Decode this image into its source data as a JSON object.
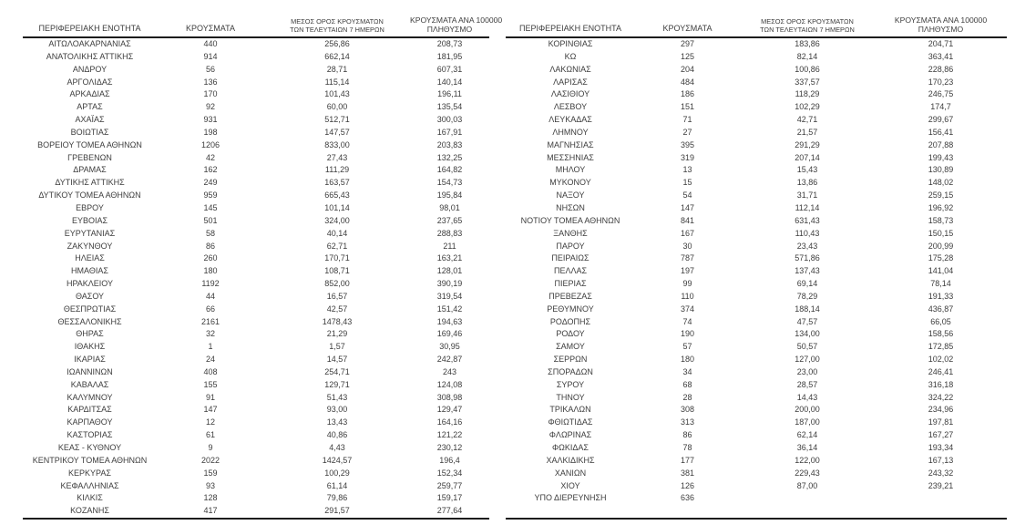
{
  "page": {
    "background_color": "#ffffff",
    "text_color": "#3d3d3d",
    "rule_color": "#1c1c1c"
  },
  "columns": {
    "region": "ΠΕΡΙΦΕΡΕΙΑΚΗ ΕΝΟΤΗΤΑ",
    "cases": "ΚΡΟΥΣΜΑΤΑ",
    "avg7_line1": "ΜΕΣΟΣ ΟΡΟΣ ΚΡΟΥΣΜΑΤΩΝ",
    "avg7_line2": "ΤΩΝ ΤΕΛΕΥΤΑΙΩΝ 7 ΗΜΕΡΩΝ",
    "per100k_line1": "ΚΡΟΥΣΜΑΤΑ ΑΝΑ 100000",
    "per100k_line2": "ΠΛΗΘΥΣΜΟ"
  },
  "left_table": {
    "rows": [
      [
        "ΑΙΤΩΛΟΑΚΑΡΝΑΝΙΑΣ",
        "440",
        "256,86",
        "208,73"
      ],
      [
        "ΑΝΑΤΟΛΙΚΗΣ ΑΤΤΙΚΗΣ",
        "914",
        "662,14",
        "181,95"
      ],
      [
        "ΑΝΔΡΟΥ",
        "56",
        "28,71",
        "607,31"
      ],
      [
        "ΑΡΓΟΛΙΔΑΣ",
        "136",
        "115,14",
        "140,14"
      ],
      [
        "ΑΡΚΑΔΙΑΣ",
        "170",
        "101,43",
        "196,11"
      ],
      [
        "ΑΡΤΑΣ",
        "92",
        "60,00",
        "135,54"
      ],
      [
        "ΑΧΑΪΑΣ",
        "931",
        "512,71",
        "300,03"
      ],
      [
        "ΒΟΙΩΤΙΑΣ",
        "198",
        "147,57",
        "167,91"
      ],
      [
        "ΒΟΡΕΙΟΥ ΤΟΜΕΑ ΑΘΗΝΩΝ",
        "1206",
        "833,00",
        "203,83"
      ],
      [
        "ΓΡΕΒΕΝΩΝ",
        "42",
        "27,43",
        "132,25"
      ],
      [
        "ΔΡΑΜΑΣ",
        "162",
        "111,29",
        "164,82"
      ],
      [
        "ΔΥΤΙΚΗΣ ΑΤΤΙΚΗΣ",
        "249",
        "163,57",
        "154,73"
      ],
      [
        "ΔΥΤΙΚΟΥ ΤΟΜΕΑ ΑΘΗΝΩΝ",
        "959",
        "665,43",
        "195,84"
      ],
      [
        "ΕΒΡΟΥ",
        "145",
        "101,14",
        "98,01"
      ],
      [
        "ΕΥΒΟΙΑΣ",
        "501",
        "324,00",
        "237,65"
      ],
      [
        "ΕΥΡΥΤΑΝΙΑΣ",
        "58",
        "40,14",
        "288,83"
      ],
      [
        "ΖΑΚΥΝΘΟΥ",
        "86",
        "62,71",
        "211"
      ],
      [
        "ΗΛΕΙΑΣ",
        "260",
        "170,71",
        "163,21"
      ],
      [
        "ΗΜΑΘΙΑΣ",
        "180",
        "108,71",
        "128,01"
      ],
      [
        "ΗΡΑΚΛΕΙΟΥ",
        "1192",
        "852,00",
        "390,19"
      ],
      [
        "ΘΑΣΟΥ",
        "44",
        "16,57",
        "319,54"
      ],
      [
        "ΘΕΣΠΡΩΤΙΑΣ",
        "66",
        "42,57",
        "151,42"
      ],
      [
        "ΘΕΣΣΑΛΟΝΙΚΗΣ",
        "2161",
        "1478,43",
        "194,63"
      ],
      [
        "ΘΗΡΑΣ",
        "32",
        "21,29",
        "169,46"
      ],
      [
        "ΙΘΑΚΗΣ",
        "1",
        "1,57",
        "30,95"
      ],
      [
        "ΙΚΑΡΙΑΣ",
        "24",
        "14,57",
        "242,87"
      ],
      [
        "ΙΩΑΝΝΙΝΩΝ",
        "408",
        "254,71",
        "243"
      ],
      [
        "ΚΑΒΑΛΑΣ",
        "155",
        "129,71",
        "124,08"
      ],
      [
        "ΚΑΛΥΜΝΟΥ",
        "91",
        "51,43",
        "308,98"
      ],
      [
        "ΚΑΡΔΙΤΣΑΣ",
        "147",
        "93,00",
        "129,47"
      ],
      [
        "ΚΑΡΠΑΘΟΥ",
        "12",
        "13,43",
        "164,16"
      ],
      [
        "ΚΑΣΤΟΡΙΑΣ",
        "61",
        "40,86",
        "121,22"
      ],
      [
        "ΚΕΑΣ - ΚΥΘΝΟΥ",
        "9",
        "4,43",
        "230,12"
      ],
      [
        "ΚΕΝΤΡΙΚΟΥ ΤΟΜΕΑ ΑΘΗΝΩΝ",
        "2022",
        "1424,57",
        "196,4"
      ],
      [
        "ΚΕΡΚΥΡΑΣ",
        "159",
        "100,29",
        "152,34"
      ],
      [
        "ΚΕΦΑΛΛΗΝΙΑΣ",
        "93",
        "61,14",
        "259,77"
      ],
      [
        "ΚΙΛΚΙΣ",
        "128",
        "79,86",
        "159,17"
      ],
      [
        "ΚΟΖΑΝΗΣ",
        "417",
        "291,57",
        "277,64"
      ]
    ]
  },
  "right_table": {
    "rows": [
      [
        "ΚΟΡΙΝΘΙΑΣ",
        "297",
        "183,86",
        "204,71"
      ],
      [
        "ΚΩ",
        "125",
        "82,14",
        "363,41"
      ],
      [
        "ΛΑΚΩΝΙΑΣ",
        "204",
        "100,86",
        "228,86"
      ],
      [
        "ΛΑΡΙΣΑΣ",
        "484",
        "337,57",
        "170,23"
      ],
      [
        "ΛΑΣΙΘΙΟΥ",
        "186",
        "118,29",
        "246,75"
      ],
      [
        "ΛΕΣΒΟΥ",
        "151",
        "102,29",
        "174,7"
      ],
      [
        "ΛΕΥΚΑΔΑΣ",
        "71",
        "42,71",
        "299,67"
      ],
      [
        "ΛΗΜΝΟΥ",
        "27",
        "21,57",
        "156,41"
      ],
      [
        "ΜΑΓΝΗΣΙΑΣ",
        "395",
        "291,29",
        "207,88"
      ],
      [
        "ΜΕΣΣΗΝΙΑΣ",
        "319",
        "207,14",
        "199,43"
      ],
      [
        "ΜΗΛΟΥ",
        "13",
        "15,43",
        "130,89"
      ],
      [
        "ΜΥΚΟΝΟΥ",
        "15",
        "13,86",
        "148,02"
      ],
      [
        "ΝΑΞΟΥ",
        "54",
        "31,71",
        "259,15"
      ],
      [
        "ΝΗΣΩΝ",
        "147",
        "112,14",
        "196,92"
      ],
      [
        "ΝΟΤΙΟΥ ΤΟΜΕΑ ΑΘΗΝΩΝ",
        "841",
        "631,43",
        "158,73"
      ],
      [
        "ΞΑΝΘΗΣ",
        "167",
        "110,43",
        "150,15"
      ],
      [
        "ΠΑΡΟΥ",
        "30",
        "23,43",
        "200,99"
      ],
      [
        "ΠΕΙΡΑΙΩΣ",
        "787",
        "571,86",
        "175,28"
      ],
      [
        "ΠΕΛΛΑΣ",
        "197",
        "137,43",
        "141,04"
      ],
      [
        "ΠΙΕΡΙΑΣ",
        "99",
        "69,14",
        "78,14"
      ],
      [
        "ΠΡΕΒΕΖΑΣ",
        "110",
        "78,29",
        "191,33"
      ],
      [
        "ΡΕΘΥΜΝΟΥ",
        "374",
        "188,14",
        "436,87"
      ],
      [
        "ΡΟΔΟΠΗΣ",
        "74",
        "47,57",
        "66,05"
      ],
      [
        "ΡΟΔΟΥ",
        "190",
        "134,00",
        "158,56"
      ],
      [
        "ΣΑΜΟΥ",
        "57",
        "50,57",
        "172,85"
      ],
      [
        "ΣΕΡΡΩΝ",
        "180",
        "127,00",
        "102,02"
      ],
      [
        "ΣΠΟΡΑΔΩΝ",
        "34",
        "23,00",
        "246,41"
      ],
      [
        "ΣΥΡΟΥ",
        "68",
        "28,57",
        "316,18"
      ],
      [
        "ΤΗΝΟΥ",
        "28",
        "14,43",
        "324,22"
      ],
      [
        "ΤΡΙΚΑΛΩΝ",
        "308",
        "200,00",
        "234,96"
      ],
      [
        "ΦΘΙΩΤΙΔΑΣ",
        "313",
        "187,00",
        "197,81"
      ],
      [
        "ΦΛΩΡΙΝΑΣ",
        "86",
        "62,14",
        "167,27"
      ],
      [
        "ΦΩΚΙΔΑΣ",
        "78",
        "36,14",
        "193,34"
      ],
      [
        "ΧΑΛΚΙΔΙΚΗΣ",
        "177",
        "122,00",
        "167,13"
      ],
      [
        "ΧΑΝΙΩΝ",
        "381",
        "229,43",
        "243,32"
      ],
      [
        "ΧΙΟΥ",
        "126",
        "87,00",
        "239,21"
      ],
      [
        "ΥΠΟ ΔΙΕΡΕΥΝΗΣΗ",
        "636",
        "",
        ""
      ]
    ]
  }
}
